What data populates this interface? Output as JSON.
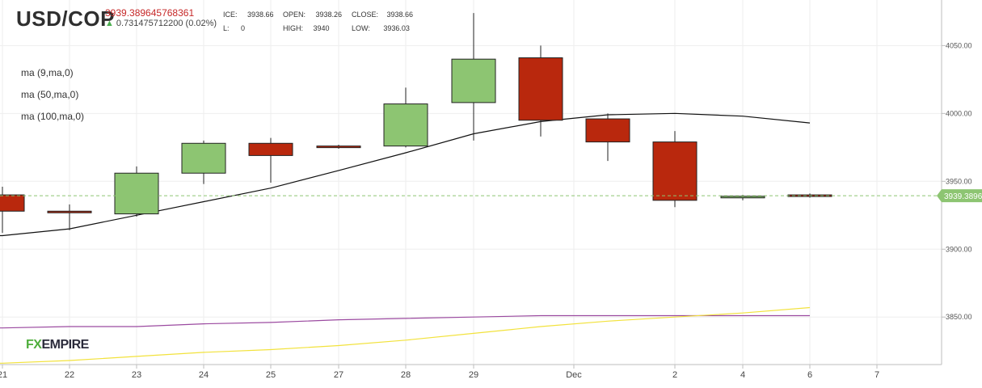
{
  "header": {
    "symbol": "USD/COP",
    "price": "3939.389645768361",
    "change": "0.731475712200 (0.02%)",
    "ice_label": "ICE:",
    "ice_value": "3938.66",
    "l_label": "L:",
    "l_value": "0",
    "open_label": "OPEN:",
    "open_value": "3938.26",
    "high_label": "HIGH:",
    "high_value": "3940",
    "close_label": "CLOSE:",
    "close_value": "3938.66",
    "low_label": "LOW:",
    "low_value": "3936.03"
  },
  "indicators": [
    "ma (9,ma,0)",
    "ma (50,ma,0)",
    "ma (100,ma,0)"
  ],
  "logo": {
    "part1": "FX",
    "part2": "EMPIRE"
  },
  "colors": {
    "up": "#8dc572",
    "down": "#b9280d",
    "ma9": "#111111",
    "ma50": "#9b4aa0",
    "ma100": "#f2e23c",
    "current": "#8dc572",
    "grid": "#eeeeee"
  },
  "chart_data": {
    "type": "candlestick",
    "ylim": [
      3815,
      4080
    ],
    "y_ticks": [
      "4050.00",
      "4000.00",
      "3950.00",
      "3900.00",
      "3850.00"
    ],
    "x_ticks": [
      "21",
      "22",
      "23",
      "24",
      "25",
      "27",
      "28",
      "29",
      "Dec",
      "2",
      "4",
      "6",
      "7"
    ],
    "current_price_label": "3939.3896",
    "current_price": 3939.39,
    "candles": [
      {
        "x": "21",
        "open": 3940,
        "high": 3946,
        "low": 3912,
        "close": 3928
      },
      {
        "x": "22",
        "open": 3928,
        "high": 3933,
        "low": 3914,
        "close": 3927
      },
      {
        "x": "23",
        "open": 3926,
        "high": 3961,
        "low": 3924,
        "close": 3956
      },
      {
        "x": "24",
        "open": 3956,
        "high": 3980,
        "low": 3948,
        "close": 3978
      },
      {
        "x": "25",
        "open": 3978,
        "high": 3982,
        "low": 3949,
        "close": 3969
      },
      {
        "x": "27",
        "open": 3976,
        "high": 3977,
        "low": 3974,
        "close": 3975
      },
      {
        "x": "28",
        "open": 3976,
        "high": 4019,
        "low": 3975,
        "close": 4007
      },
      {
        "x": "29",
        "open": 4008,
        "high": 4074,
        "low": 3980,
        "close": 4040
      },
      {
        "x": "30",
        "open": 4041,
        "high": 4050,
        "low": 3983,
        "close": 3995
      },
      {
        "x": "Dec",
        "open": 3996,
        "high": 4000,
        "low": 3965,
        "close": 3979
      },
      {
        "x": "2",
        "open": 3979,
        "high": 3987,
        "low": 3931,
        "close": 3936
      },
      {
        "x": "4",
        "open": 3938,
        "high": 3940,
        "low": 3936,
        "close": 3939
      },
      {
        "x": "6",
        "open": 3940,
        "high": 3941,
        "low": 3938,
        "close": 3939
      }
    ],
    "series": [
      {
        "name": "ma (9,ma,0)",
        "values": [
          3910,
          3915,
          3925,
          3935,
          3945,
          3958,
          3971,
          3985,
          3994,
          3999,
          4000,
          3998,
          3993
        ]
      },
      {
        "name": "ma (50,ma,0)",
        "values": [
          3842,
          3843,
          3843,
          3845,
          3846,
          3848,
          3849,
          3850,
          3851,
          3851,
          3851,
          3851,
          3851
        ]
      },
      {
        "name": "ma (100,ma,0)",
        "values": [
          3816,
          3818,
          3821,
          3824,
          3826,
          3829,
          3833,
          3838,
          3843,
          3847,
          3850,
          3853,
          3857
        ]
      }
    ]
  }
}
